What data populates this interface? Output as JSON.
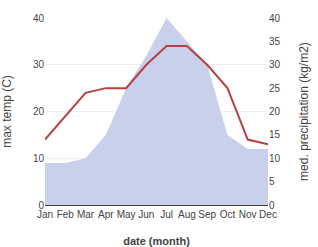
{
  "chart_data": {
    "type": "line",
    "categories": [
      "Jan",
      "Feb",
      "Mar",
      "Apr",
      "May",
      "Jun",
      "Jul",
      "Aug",
      "Sep",
      "Oct",
      "Nov",
      "Dec"
    ],
    "series": [
      {
        "type": "line",
        "color": "#b84040",
        "values": [
          14,
          19,
          24,
          25,
          25,
          30,
          34,
          34,
          30,
          25,
          14,
          13
        ]
      },
      {
        "type": "area",
        "color": "#c8d0eb",
        "axis": "y2",
        "values": [
          9,
          9,
          10,
          15,
          25,
          32,
          40,
          35,
          30,
          15,
          12,
          12
        ]
      }
    ],
    "xlabel": "date (month)",
    "ylabel": "max temp (C)",
    "y2label": "med. precipitation (kg/m2)",
    "ylim": [
      0,
      40
    ],
    "yticks": [
      0,
      10,
      20,
      30,
      40
    ],
    "y2lim": [
      0,
      40
    ],
    "y2ticks": [
      0,
      5,
      10,
      15,
      20,
      25,
      30,
      35,
      40
    ],
    "grid": true
  }
}
